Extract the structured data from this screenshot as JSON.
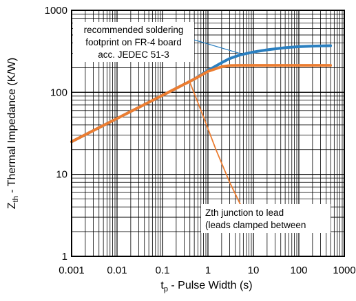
{
  "chart_data": {
    "type": "line",
    "title": "",
    "xlabel": {
      "base": "t",
      "sub": "p",
      "rest": " - Pulse Width (s)"
    },
    "ylabel": {
      "base": "Z",
      "sub": "th",
      "rest": " - Thermal Impedance (K/W)"
    },
    "x_scale": "log",
    "y_scale": "log",
    "xlim": [
      0.001,
      1000
    ],
    "ylim": [
      1,
      1000
    ],
    "x_ticks": [
      "0.001",
      "0.01",
      "0.1",
      "1",
      "10",
      "100",
      "1000"
    ],
    "y_ticks": [
      "1",
      "10",
      "100",
      "1000"
    ],
    "grid": true,
    "series": [
      {
        "color": "#2a7fc0",
        "x": [
          0.001,
          0.01,
          0.1,
          0.5,
          1,
          2,
          3,
          5,
          10,
          20,
          50,
          100,
          200,
          500
        ],
        "y": [
          25,
          48,
          92,
          145,
          185,
          230,
          258,
          285,
          310,
          330,
          350,
          360,
          366,
          370
        ]
      },
      {
        "color": "#ec7d31",
        "x": [
          0.001,
          0.01,
          0.1,
          0.5,
          1,
          2,
          3,
          5,
          10,
          20,
          50,
          100,
          200,
          500
        ],
        "y": [
          25,
          48,
          92,
          145,
          180,
          205,
          212,
          213,
          213,
          213,
          213,
          213,
          213,
          213
        ]
      },
      {
        "color": "#ec7d31",
        "x": [
          0.4,
          0.8,
          1.5,
          3,
          5.5
        ],
        "y": [
          133,
          50,
          20,
          8,
          4
        ]
      }
    ],
    "annotations": [
      {
        "lines": [
          "recommended soldering",
          "footprint on FR-4 board",
          "acc. JEDEC 51-3"
        ],
        "target_x": 6,
        "target_y": 290
      },
      {
        "lines": [
          "Zth junction to lead",
          "(leads clamped between"
        ]
      }
    ]
  }
}
